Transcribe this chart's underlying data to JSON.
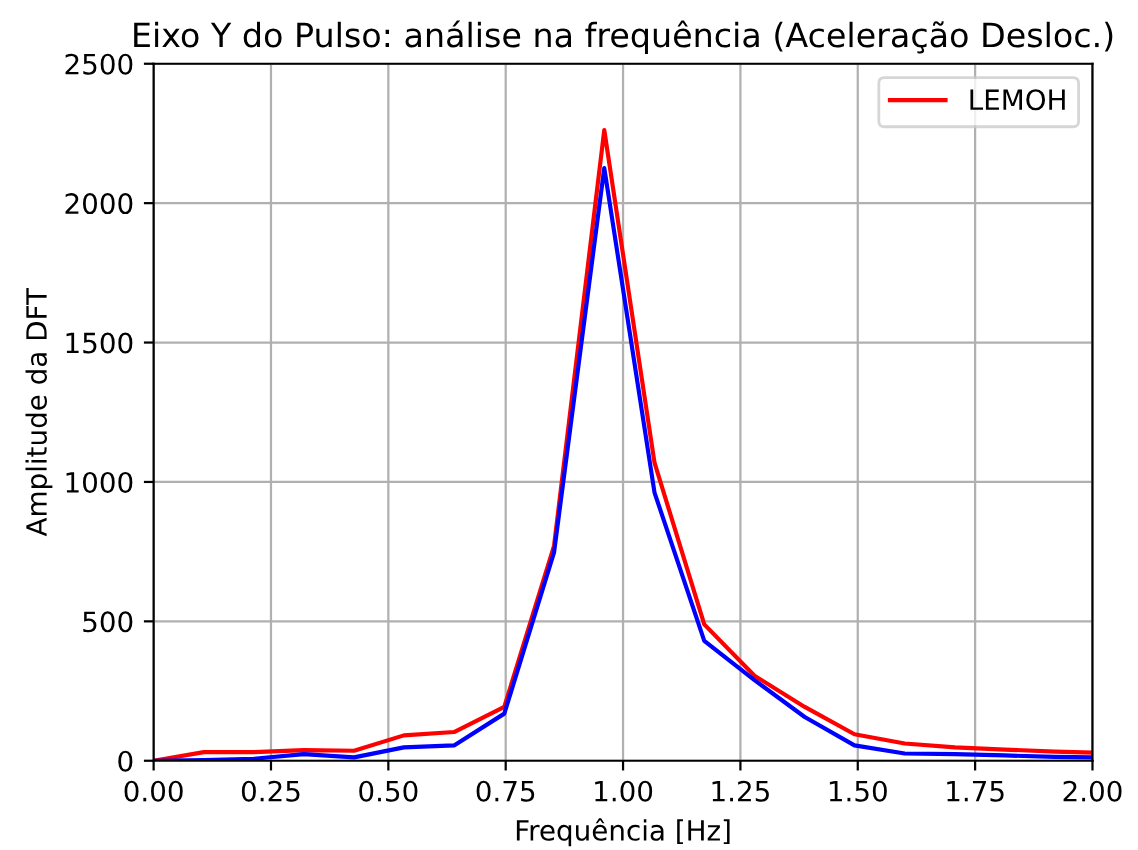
{
  "chart_data": {
    "type": "line",
    "title": "Eixo Y do Pulso: análise na frequência (Aceleração Desloc.)",
    "xlabel": "Frequência [Hz]",
    "ylabel": "Amplitude da DFT",
    "x": [
      0,
      0.107,
      0.213,
      0.32,
      0.427,
      0.533,
      0.64,
      0.747,
      0.853,
      0.96,
      1.067,
      1.173,
      1.28,
      1.387,
      1.493,
      1.6,
      1.707,
      1.813,
      1.92,
      2.0
    ],
    "series": [
      {
        "name": "LEMOH",
        "color": "#ff0000",
        "values": [
          0,
          31,
          31,
          38,
          36,
          91,
          103,
          193,
          771,
          2262,
          1069,
          489,
          305,
          193,
          95,
          62,
          48,
          40,
          33,
          29
        ]
      },
      {
        "color": "#0000ff",
        "values": [
          0,
          2,
          7,
          24,
          12,
          48,
          55,
          169,
          747,
          2126,
          962,
          430,
          289,
          157,
          55,
          26,
          24,
          19,
          14,
          12
        ]
      }
    ],
    "xlim": [
      0,
      2
    ],
    "xticks": [
      {
        "value": 0,
        "label": "0.00"
      },
      {
        "value": 0.25,
        "label": "0.25"
      },
      {
        "value": 0.5,
        "label": "0.50"
      },
      {
        "value": 0.75,
        "label": "0.75"
      },
      {
        "value": 1,
        "label": "1.00"
      },
      {
        "value": 1.25,
        "label": "1.25"
      },
      {
        "value": 1.5,
        "label": "1.50"
      },
      {
        "value": 1.75,
        "label": "1.75"
      },
      {
        "value": 2,
        "label": "2.00"
      }
    ],
    "ylim": [
      0,
      2500
    ],
    "yticks": [
      0,
      500,
      1000,
      1500,
      2000,
      2500
    ],
    "grid": true,
    "legend": "top right",
    "marker": "none",
    "line_style": "solid"
  }
}
